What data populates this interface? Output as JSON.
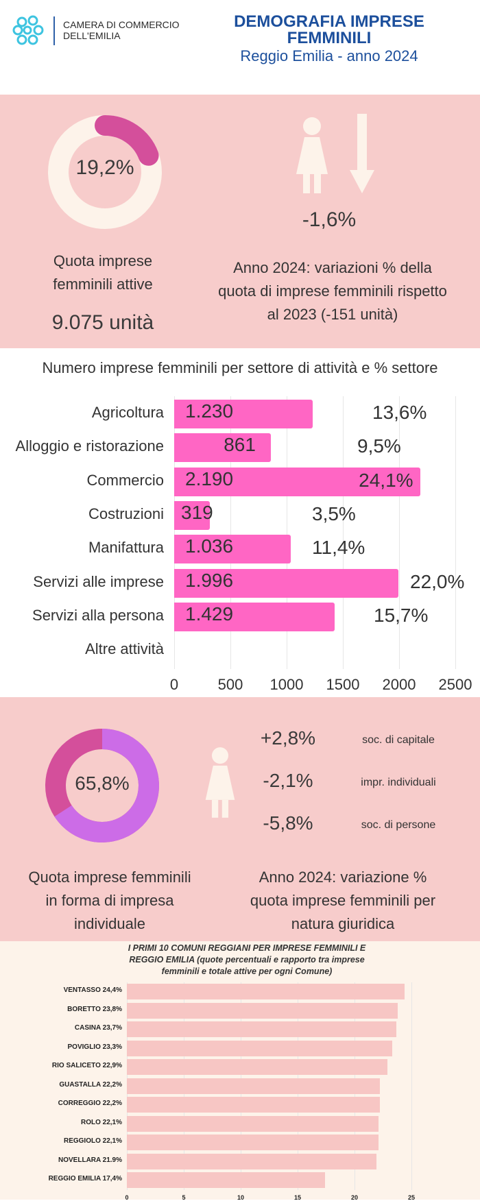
{
  "header": {
    "logo_line1": "CAMERA DI COMMERCIO",
    "logo_line2": "DELL'EMILIA",
    "title_line1": "DEMOGRAFIA IMPRESE",
    "title_line2": "FEMMINILI",
    "subtitle": "Reggio Emilia - anno 2024"
  },
  "quota": {
    "donut_value": "19,2%",
    "donut_fraction": 0.192,
    "label_line1": "Quota imprese",
    "label_line2": "femminili attive",
    "units": "9.075 unità",
    "variation": "-1,6%",
    "variation_text_line1": "Anno 2024: variazioni % della",
    "variation_text_line2": "quota di imprese femminili rispetto",
    "variation_text_line3": "al 2023 (-151 unità)"
  },
  "colors": {
    "pink_band": "#f7cccb",
    "bar_pink": "#ff66c4",
    "donut1_arc": "#d44f9b",
    "donut_track": "#fdf3ea",
    "donut2_a": "#d44f9b",
    "donut2_b": "#cc6ce7",
    "comuni_bar": "#f7c6c4",
    "title_blue": "#1c4f9c"
  },
  "chart_data": [
    {
      "type": "bar",
      "orientation": "horizontal",
      "title": "Numero imprese femminili per settore di attività e % settore",
      "categories": [
        "Agricoltura",
        "Alloggio e ristorazione",
        "Commercio",
        "Costruzioni",
        "Manifattura",
        "Servizi alle imprese",
        "Servizi alla persona",
        "Altre attività"
      ],
      "values": [
        1230,
        861,
        2190,
        319,
        1036,
        1996,
        1429,
        0
      ],
      "value_labels": [
        "1.230",
        "861",
        "2.190",
        "319",
        "1.036",
        "1.996",
        "1.429",
        ""
      ],
      "pct_labels": [
        "13,6%",
        "9,5%",
        "24,1%",
        "3,5%",
        "11,4%",
        "22,0%",
        "15,7%",
        ""
      ],
      "xlim": [
        0,
        2500
      ],
      "xticks": [
        "0",
        "500",
        "1000",
        "1500",
        "2000",
        "2500"
      ],
      "grid": true
    },
    {
      "type": "bar",
      "orientation": "horizontal",
      "title_line1": "I PRIMI 10 COMUNI REGGIANI PER IMPRESE FEMMINILI E",
      "title_line2": "REGGIO EMILIA  (quote percentuali e rapporto tra imprese",
      "title_line3": "femminili e totale attive per ogni Comune)",
      "categories": [
        "VENTASSO 24,4%",
        "BORETTO 23,8%",
        "CASINA 23,7%",
        "POVIGLIO 23,3%",
        "RIO SALICETO 22,9%",
        "GUASTALLA 22,2%",
        "CORREGGIO 22,2%",
        "ROLO 22,1%",
        "REGGIOLO 22,1%",
        "NOVELLARA 21.9%",
        "REGGIO EMILIA 17,4%"
      ],
      "values": [
        24.4,
        23.8,
        23.7,
        23.3,
        22.9,
        22.2,
        22.2,
        22.1,
        22.1,
        21.9,
        17.4
      ],
      "xlim": [
        0,
        25
      ],
      "xticks": [
        "0",
        "5",
        "10",
        "15",
        "20",
        "25"
      ]
    }
  ],
  "forma": {
    "donut_value": "65,8%",
    "donut_fraction": 0.658,
    "label_line1": "Quota imprese femminili",
    "label_line2": "in forma di impresa",
    "label_line3": "individuale",
    "rows": [
      {
        "value": "+2,8%",
        "label": "soc. di capitale"
      },
      {
        "value": "-2,1%",
        "label": "impr. individuali"
      },
      {
        "value": "-5,8%",
        "label": "soc. di persone"
      }
    ],
    "text_line1": "Anno 2024: variazione %",
    "text_line2": "quota imprese femminili per",
    "text_line3": "natura giuridica"
  }
}
